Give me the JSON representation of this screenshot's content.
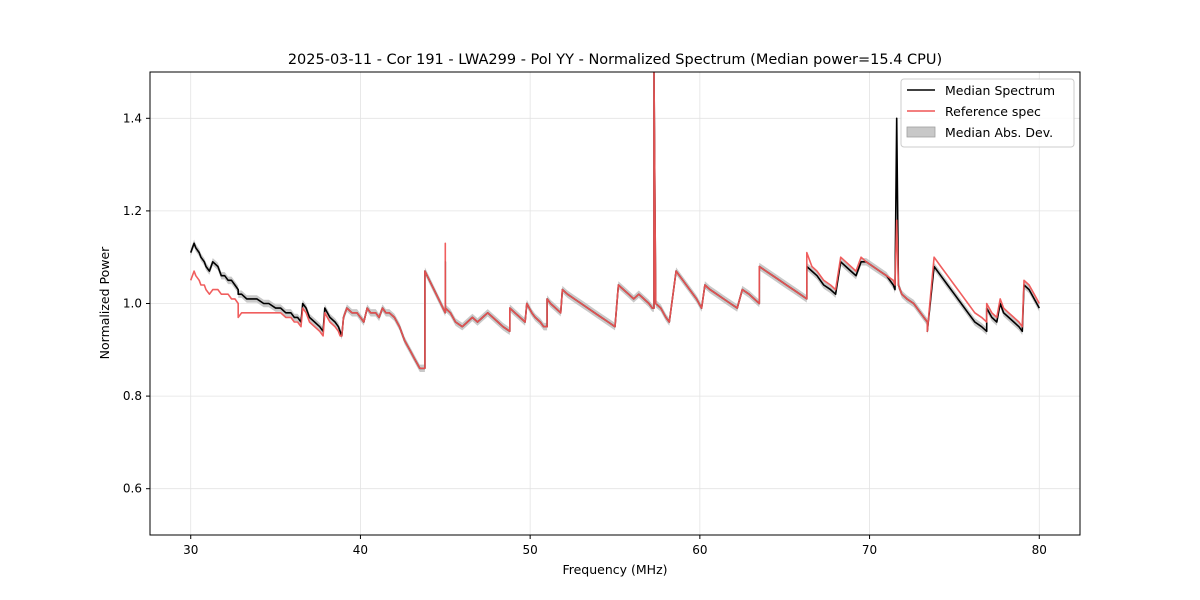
{
  "chart_data": {
    "type": "line",
    "title": "2025-03-11 - Cor 191 - LWA299 - Pol YY - Normalized Spectrum (Median power=15.4 CPU)",
    "xlabel": "Frequency (MHz)",
    "ylabel": "Normalized Power",
    "xlim": [
      27.6,
      82.4
    ],
    "ylim": [
      0.5,
      1.5
    ],
    "xticks": [
      30,
      40,
      50,
      60,
      70,
      80
    ],
    "yticks": [
      0.6,
      0.8,
      1.0,
      1.2,
      1.4
    ],
    "xtick_labels": [
      "30",
      "40",
      "50",
      "60",
      "70",
      "80"
    ],
    "ytick_labels": [
      "0.6",
      "0.8",
      "1.0",
      "1.2",
      "1.4"
    ],
    "grid": true,
    "legend_position": "top-right",
    "series": [
      {
        "name": "Median Spectrum",
        "color": "#000000",
        "x": [
          30.0,
          30.2,
          30.3,
          30.5,
          30.6,
          30.8,
          30.9,
          31.1,
          31.3,
          31.6,
          31.8,
          32.0,
          32.2,
          32.4,
          32.6,
          32.8,
          32.8,
          33.0,
          33.3,
          33.6,
          33.9,
          34.3,
          34.6,
          35.0,
          35.3,
          35.6,
          35.9,
          36.1,
          36.3,
          36.5,
          36.6,
          36.8,
          37.0,
          37.3,
          37.6,
          37.8,
          37.9,
          38.2,
          38.5,
          38.7,
          38.8,
          38.9,
          39.0,
          39.2,
          39.5,
          39.8,
          40.0,
          40.2,
          40.4,
          40.6,
          40.9,
          41.1,
          41.3,
          41.5,
          41.7,
          42.0,
          42.3,
          42.6,
          42.9,
          43.2,
          43.5,
          43.8,
          43.8,
          44.2,
          44.6,
          45.0,
          45.0,
          45.0,
          45.3,
          45.6,
          46.0,
          46.3,
          46.6,
          46.9,
          47.2,
          47.5,
          47.8,
          48.1,
          48.4,
          48.8,
          48.8,
          49.1,
          49.4,
          49.7,
          49.8,
          50.1,
          50.3,
          50.6,
          50.8,
          51.0,
          51.0,
          51.2,
          51.5,
          51.8,
          51.9,
          52.2,
          52.6,
          53.0,
          53.4,
          53.8,
          54.2,
          54.6,
          55.0,
          55.2,
          55.5,
          55.8,
          56.1,
          56.4,
          56.7,
          57.0,
          57.2,
          57.3,
          57.3,
          57.4,
          57.7,
          58.0,
          58.2,
          58.6,
          59.0,
          59.4,
          59.8,
          60.1,
          60.3,
          60.6,
          61.0,
          61.4,
          61.8,
          62.2,
          62.5,
          62.9,
          63.2,
          63.5,
          63.5,
          63.9,
          64.3,
          64.7,
          65.1,
          65.5,
          65.9,
          66.3,
          66.3,
          66.6,
          66.9,
          67.3,
          67.7,
          68.0,
          68.3,
          68.6,
          68.9,
          69.2,
          69.5,
          69.8,
          70.2,
          70.6,
          71.0,
          71.4,
          71.5,
          71.6,
          71.7,
          71.9,
          72.2,
          72.6,
          73.0,
          73.4,
          73.4,
          73.8,
          74.2,
          74.6,
          75.0,
          75.4,
          75.8,
          76.2,
          76.6,
          76.9,
          76.9,
          77.2,
          77.5,
          77.7,
          77.9,
          78.2,
          78.5,
          78.8,
          79.0,
          79.1,
          79.4,
          79.7,
          80.0
        ],
        "values": [
          1.11,
          1.13,
          1.12,
          1.11,
          1.1,
          1.09,
          1.08,
          1.07,
          1.09,
          1.08,
          1.06,
          1.06,
          1.05,
          1.05,
          1.04,
          1.03,
          1.02,
          1.02,
          1.01,
          1.01,
          1.01,
          1.0,
          1.0,
          0.99,
          0.99,
          0.98,
          0.98,
          0.97,
          0.97,
          0.96,
          1.0,
          0.99,
          0.97,
          0.96,
          0.95,
          0.94,
          0.99,
          0.97,
          0.96,
          0.95,
          0.94,
          0.93,
          0.97,
          0.99,
          0.98,
          0.98,
          0.97,
          0.96,
          0.99,
          0.98,
          0.98,
          0.97,
          0.99,
          0.98,
          0.98,
          0.97,
          0.95,
          0.92,
          0.9,
          0.88,
          0.86,
          0.86,
          1.07,
          1.04,
          1.01,
          0.98,
          1.09,
          0.99,
          0.98,
          0.96,
          0.95,
          0.96,
          0.97,
          0.96,
          0.97,
          0.98,
          0.97,
          0.96,
          0.95,
          0.94,
          0.99,
          0.98,
          0.97,
          0.96,
          1.0,
          0.98,
          0.97,
          0.96,
          0.95,
          0.95,
          1.01,
          1.0,
          0.99,
          0.98,
          1.03,
          1.02,
          1.01,
          1.0,
          0.99,
          0.98,
          0.97,
          0.96,
          0.95,
          1.04,
          1.03,
          1.02,
          1.01,
          1.02,
          1.01,
          1.0,
          0.99,
          0.99,
          1.5,
          1.0,
          0.99,
          0.97,
          0.96,
          1.07,
          1.05,
          1.03,
          1.01,
          0.99,
          1.04,
          1.03,
          1.02,
          1.01,
          1.0,
          0.99,
          1.03,
          1.02,
          1.01,
          1.0,
          1.08,
          1.07,
          1.06,
          1.05,
          1.04,
          1.03,
          1.02,
          1.01,
          1.08,
          1.07,
          1.06,
          1.04,
          1.03,
          1.02,
          1.09,
          1.08,
          1.07,
          1.06,
          1.09,
          1.09,
          1.08,
          1.07,
          1.06,
          1.04,
          1.03,
          1.4,
          1.04,
          1.02,
          1.01,
          1.0,
          0.98,
          0.96,
          0.94,
          1.08,
          1.06,
          1.04,
          1.02,
          1.0,
          0.98,
          0.96,
          0.95,
          0.94,
          0.99,
          0.97,
          0.96,
          1.0,
          0.98,
          0.97,
          0.96,
          0.95,
          0.94,
          1.04,
          1.03,
          1.01,
          0.99
        ]
      },
      {
        "name": "Reference spec",
        "color": "#ef5555",
        "x": [
          30.0,
          30.2,
          30.3,
          30.5,
          30.6,
          30.8,
          30.9,
          31.1,
          31.3,
          31.6,
          31.8,
          32.0,
          32.2,
          32.4,
          32.6,
          32.8,
          32.8,
          33.0,
          33.3,
          33.6,
          33.9,
          34.3,
          34.6,
          35.0,
          35.3,
          35.6,
          35.9,
          36.1,
          36.3,
          36.5,
          36.6,
          36.8,
          37.0,
          37.3,
          37.6,
          37.8,
          37.9,
          38.2,
          38.5,
          38.7,
          38.8,
          38.9,
          39.0,
          39.2,
          39.5,
          39.8,
          40.0,
          40.2,
          40.4,
          40.6,
          40.9,
          41.1,
          41.3,
          41.5,
          41.7,
          42.0,
          42.3,
          42.6,
          42.9,
          43.2,
          43.5,
          43.8,
          43.8,
          44.2,
          44.6,
          45.0,
          45.0,
          45.0,
          45.3,
          45.6,
          46.0,
          46.3,
          46.6,
          46.9,
          47.2,
          47.5,
          47.8,
          48.1,
          48.4,
          48.8,
          48.8,
          49.1,
          49.4,
          49.7,
          49.8,
          50.1,
          50.3,
          50.6,
          50.8,
          51.0,
          51.0,
          51.2,
          51.5,
          51.8,
          51.9,
          52.2,
          52.6,
          53.0,
          53.4,
          53.8,
          54.2,
          54.6,
          55.0,
          55.2,
          55.5,
          55.8,
          56.1,
          56.4,
          56.7,
          57.0,
          57.2,
          57.3,
          57.3,
          57.4,
          57.7,
          58.0,
          58.2,
          58.6,
          59.0,
          59.4,
          59.8,
          60.1,
          60.3,
          60.6,
          61.0,
          61.4,
          61.8,
          62.2,
          62.5,
          62.9,
          63.2,
          63.5,
          63.5,
          63.9,
          64.3,
          64.7,
          65.1,
          65.5,
          65.9,
          66.3,
          66.3,
          66.6,
          66.9,
          67.3,
          67.7,
          68.0,
          68.3,
          68.6,
          68.9,
          69.2,
          69.5,
          69.8,
          70.2,
          70.6,
          71.0,
          71.4,
          71.5,
          71.6,
          71.7,
          71.9,
          72.2,
          72.6,
          73.0,
          73.4,
          73.4,
          73.8,
          74.2,
          74.6,
          75.0,
          75.4,
          75.8,
          76.2,
          76.6,
          76.9,
          76.9,
          77.2,
          77.5,
          77.7,
          77.9,
          78.2,
          78.5,
          78.8,
          79.0,
          79.1,
          79.4,
          79.7,
          80.0
        ],
        "values": [
          1.05,
          1.07,
          1.06,
          1.05,
          1.04,
          1.04,
          1.03,
          1.02,
          1.03,
          1.03,
          1.02,
          1.02,
          1.02,
          1.01,
          1.01,
          1.0,
          0.97,
          0.98,
          0.98,
          0.98,
          0.98,
          0.98,
          0.98,
          0.98,
          0.98,
          0.97,
          0.97,
          0.96,
          0.96,
          0.95,
          0.99,
          0.98,
          0.96,
          0.95,
          0.94,
          0.93,
          0.98,
          0.96,
          0.95,
          0.94,
          0.93,
          0.93,
          0.97,
          0.99,
          0.98,
          0.98,
          0.97,
          0.96,
          0.99,
          0.98,
          0.98,
          0.97,
          0.99,
          0.98,
          0.98,
          0.97,
          0.95,
          0.92,
          0.9,
          0.88,
          0.86,
          0.86,
          1.07,
          1.04,
          1.01,
          0.98,
          1.13,
          0.99,
          0.98,
          0.96,
          0.95,
          0.96,
          0.97,
          0.96,
          0.97,
          0.98,
          0.97,
          0.96,
          0.95,
          0.94,
          0.99,
          0.98,
          0.97,
          0.96,
          1.0,
          0.98,
          0.97,
          0.96,
          0.95,
          0.95,
          1.01,
          1.0,
          0.99,
          0.98,
          1.03,
          1.02,
          1.01,
          1.0,
          0.99,
          0.98,
          0.97,
          0.96,
          0.95,
          1.04,
          1.03,
          1.02,
          1.01,
          1.02,
          1.01,
          1.0,
          0.99,
          0.99,
          1.5,
          1.0,
          0.99,
          0.97,
          0.96,
          1.07,
          1.05,
          1.03,
          1.01,
          0.99,
          1.04,
          1.03,
          1.02,
          1.01,
          1.0,
          0.99,
          1.03,
          1.02,
          1.01,
          1.0,
          1.08,
          1.07,
          1.06,
          1.05,
          1.04,
          1.03,
          1.02,
          1.01,
          1.11,
          1.08,
          1.07,
          1.05,
          1.04,
          1.03,
          1.1,
          1.09,
          1.08,
          1.07,
          1.1,
          1.09,
          1.08,
          1.07,
          1.06,
          1.05,
          1.04,
          1.18,
          1.04,
          1.02,
          1.01,
          1.0,
          0.98,
          0.96,
          0.94,
          1.1,
          1.08,
          1.06,
          1.04,
          1.02,
          1.0,
          0.98,
          0.97,
          0.96,
          1.0,
          0.98,
          0.97,
          1.01,
          0.99,
          0.98,
          0.97,
          0.96,
          0.95,
          1.05,
          1.04,
          1.02,
          1.0
        ]
      },
      {
        "name": "Median Abs. Dev.",
        "type": "band",
        "color": "#bfbfbf",
        "half_width": 0.008
      }
    ]
  }
}
